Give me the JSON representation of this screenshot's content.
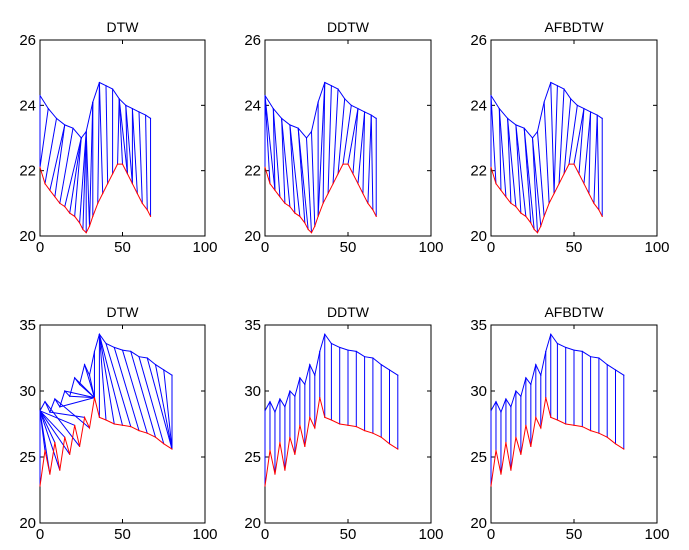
{
  "colors": {
    "link": "#0000ff",
    "series_a": "#0000ff",
    "series_b": "#ff0000",
    "axes": "#000000",
    "background": "#ffffff"
  },
  "chart_data": [
    {
      "type": "line",
      "title": "DTW",
      "xlim": [
        0,
        100
      ],
      "ylim": [
        20,
        26
      ],
      "xticks": [
        "0",
        "50",
        "100"
      ],
      "yticks": [
        "20",
        "22",
        "24",
        "26"
      ],
      "grid": false,
      "series": [
        {
          "x": [
            0,
            5,
            10,
            15,
            20,
            25,
            28,
            32,
            36,
            40,
            44,
            48,
            52,
            56,
            60,
            64,
            67
          ],
          "values": [
            24.3,
            23.9,
            23.6,
            23.4,
            23.3,
            23.0,
            23.2,
            24.1,
            24.7,
            24.6,
            24.5,
            24.2,
            24.0,
            23.9,
            23.8,
            23.7,
            23.6
          ]
        },
        {
          "x": [
            0,
            3,
            6,
            9,
            12,
            15,
            18,
            21,
            24,
            26,
            28,
            30,
            32,
            35,
            38,
            41,
            44,
            47,
            50,
            53,
            56,
            59,
            62,
            65,
            67
          ],
          "values": [
            22.1,
            21.6,
            21.4,
            21.2,
            21.0,
            20.9,
            20.7,
            20.6,
            20.4,
            20.2,
            20.1,
            20.3,
            20.6,
            21.0,
            21.3,
            21.6,
            21.9,
            22.2,
            22.2,
            21.9,
            21.6,
            21.3,
            21.0,
            20.8,
            20.6
          ]
        }
      ],
      "alignment_links": [
        [
          0,
          0
        ],
        [
          1,
          0
        ],
        [
          2,
          1
        ],
        [
          3,
          2
        ],
        [
          3,
          3
        ],
        [
          4,
          4
        ],
        [
          5,
          5
        ],
        [
          5,
          6
        ],
        [
          5,
          7
        ],
        [
          6,
          8
        ],
        [
          6,
          9
        ],
        [
          6,
          10
        ],
        [
          6,
          11
        ],
        [
          7,
          11
        ],
        [
          7,
          12
        ],
        [
          8,
          13
        ],
        [
          8,
          14
        ],
        [
          9,
          15
        ],
        [
          10,
          16
        ],
        [
          11,
          17
        ],
        [
          11,
          18
        ],
        [
          11,
          19
        ],
        [
          12,
          19
        ],
        [
          12,
          20
        ],
        [
          13,
          20
        ],
        [
          13,
          21
        ],
        [
          14,
          22
        ],
        [
          15,
          23
        ],
        [
          16,
          24
        ]
      ]
    },
    {
      "type": "line",
      "title": "DDTW",
      "xlim": [
        0,
        100
      ],
      "ylim": [
        20,
        26
      ],
      "xticks": [
        "0",
        "50",
        "100"
      ],
      "yticks": [
        "20",
        "22",
        "24",
        "26"
      ],
      "grid": false,
      "series": [
        {
          "x": [
            0,
            5,
            10,
            15,
            20,
            25,
            28,
            32,
            36,
            40,
            44,
            48,
            52,
            56,
            60,
            64,
            67
          ],
          "values": [
            24.3,
            23.9,
            23.6,
            23.4,
            23.3,
            23.0,
            23.2,
            24.1,
            24.7,
            24.6,
            24.5,
            24.2,
            24.0,
            23.9,
            23.8,
            23.7,
            23.6
          ]
        },
        {
          "x": [
            0,
            3,
            6,
            9,
            12,
            15,
            18,
            21,
            24,
            26,
            28,
            30,
            32,
            35,
            38,
            41,
            44,
            47,
            50,
            53,
            56,
            59,
            62,
            65,
            67
          ],
          "values": [
            22.1,
            21.6,
            21.4,
            21.2,
            21.0,
            20.9,
            20.7,
            20.6,
            20.4,
            20.2,
            20.1,
            20.3,
            20.6,
            21.0,
            21.3,
            21.6,
            21.9,
            22.2,
            22.2,
            21.9,
            21.6,
            21.3,
            21.0,
            20.8,
            20.6
          ]
        }
      ],
      "alignment_links": [
        [
          0,
          0
        ],
        [
          0,
          1
        ],
        [
          0,
          2
        ],
        [
          1,
          2
        ],
        [
          1,
          3
        ],
        [
          2,
          4
        ],
        [
          2,
          5
        ],
        [
          3,
          6
        ],
        [
          3,
          7
        ],
        [
          4,
          8
        ],
        [
          4,
          9
        ],
        [
          5,
          10
        ],
        [
          6,
          11
        ],
        [
          7,
          12
        ],
        [
          8,
          12
        ],
        [
          8,
          13
        ],
        [
          9,
          14
        ],
        [
          10,
          15
        ],
        [
          11,
          16
        ],
        [
          12,
          17
        ],
        [
          13,
          18
        ],
        [
          13,
          19
        ],
        [
          14,
          20
        ],
        [
          14,
          21
        ],
        [
          15,
          22
        ],
        [
          15,
          23
        ],
        [
          16,
          24
        ]
      ]
    },
    {
      "type": "line",
      "title": "AFBDTW",
      "xlim": [
        0,
        100
      ],
      "ylim": [
        20,
        26
      ],
      "xticks": [
        "0",
        "50",
        "100"
      ],
      "yticks": [
        "20",
        "22",
        "24",
        "26"
      ],
      "grid": false,
      "series": [
        {
          "x": [
            0,
            5,
            10,
            15,
            20,
            25,
            28,
            32,
            36,
            40,
            44,
            48,
            52,
            56,
            60,
            64,
            67
          ],
          "values": [
            24.3,
            23.9,
            23.6,
            23.4,
            23.3,
            23.0,
            23.2,
            24.1,
            24.7,
            24.6,
            24.5,
            24.2,
            24.0,
            23.9,
            23.8,
            23.7,
            23.6
          ]
        },
        {
          "x": [
            0,
            3,
            6,
            9,
            12,
            15,
            18,
            21,
            24,
            26,
            28,
            30,
            32,
            35,
            38,
            41,
            44,
            47,
            50,
            53,
            56,
            59,
            62,
            65,
            67
          ],
          "values": [
            22.1,
            21.6,
            21.4,
            21.2,
            21.0,
            20.9,
            20.7,
            20.6,
            20.4,
            20.2,
            20.1,
            20.3,
            20.6,
            21.0,
            21.3,
            21.6,
            21.9,
            22.2,
            22.2,
            21.9,
            21.6,
            21.3,
            21.0,
            20.8,
            20.6
          ]
        }
      ],
      "alignment_links": [
        [
          0,
          0
        ],
        [
          0,
          1
        ],
        [
          1,
          2
        ],
        [
          1,
          3
        ],
        [
          2,
          4
        ],
        [
          2,
          5
        ],
        [
          3,
          6
        ],
        [
          3,
          7
        ],
        [
          4,
          8
        ],
        [
          4,
          9
        ],
        [
          5,
          10
        ],
        [
          5,
          11
        ],
        [
          6,
          12
        ],
        [
          7,
          13
        ],
        [
          8,
          14
        ],
        [
          9,
          14
        ],
        [
          10,
          15
        ],
        [
          11,
          16
        ],
        [
          12,
          17
        ],
        [
          13,
          18
        ],
        [
          13,
          19
        ],
        [
          14,
          20
        ],
        [
          14,
          21
        ],
        [
          15,
          22
        ],
        [
          15,
          23
        ],
        [
          16,
          24
        ]
      ]
    },
    {
      "type": "line",
      "title": "DTW",
      "xlim": [
        0,
        100
      ],
      "ylim": [
        20,
        35
      ],
      "xticks": [
        "0",
        "50",
        "100"
      ],
      "yticks": [
        "20",
        "25",
        "30",
        "35"
      ],
      "grid": false,
      "series": [
        {
          "x": [
            0,
            3,
            6,
            9,
            12,
            15,
            18,
            21,
            24,
            27,
            30,
            33,
            36,
            40,
            45,
            50,
            55,
            60,
            65,
            70,
            75,
            80
          ],
          "values": [
            28.5,
            29.2,
            28.4,
            29.4,
            28.8,
            30.0,
            29.6,
            31.0,
            30.5,
            32.0,
            31.2,
            33.0,
            34.3,
            33.6,
            33.3,
            33.1,
            33.0,
            32.6,
            32.5,
            32.0,
            31.6,
            31.2
          ]
        },
        {
          "x": [
            0,
            3,
            6,
            9,
            12,
            15,
            18,
            21,
            24,
            27,
            30,
            33,
            36,
            40,
            45,
            50,
            55,
            60,
            65,
            70,
            75,
            80
          ],
          "values": [
            22.8,
            25.5,
            23.7,
            26.1,
            24.0,
            26.5,
            25.2,
            27.4,
            25.8,
            28.0,
            27.2,
            29.5,
            28.0,
            27.8,
            27.5,
            27.4,
            27.3,
            27.0,
            26.8,
            26.5,
            26.0,
            25.6
          ]
        }
      ],
      "alignment_links": [
        [
          0,
          0
        ],
        [
          0,
          1
        ],
        [
          0,
          2
        ],
        [
          0,
          3
        ],
        [
          0,
          4
        ],
        [
          0,
          5
        ],
        [
          0,
          6
        ],
        [
          0,
          7
        ],
        [
          1,
          8
        ],
        [
          2,
          9
        ],
        [
          3,
          10
        ],
        [
          4,
          11
        ],
        [
          5,
          11
        ],
        [
          6,
          11
        ],
        [
          7,
          11
        ],
        [
          8,
          11
        ],
        [
          9,
          11
        ],
        [
          10,
          11
        ],
        [
          11,
          11
        ],
        [
          12,
          12
        ],
        [
          12,
          13
        ],
        [
          12,
          14
        ],
        [
          12,
          15
        ],
        [
          13,
          16
        ],
        [
          14,
          17
        ],
        [
          15,
          18
        ],
        [
          16,
          19
        ],
        [
          17,
          20
        ],
        [
          18,
          21
        ],
        [
          19,
          21
        ],
        [
          20,
          21
        ],
        [
          21,
          21
        ]
      ]
    },
    {
      "type": "line",
      "title": "DDTW",
      "xlim": [
        0,
        100
      ],
      "ylim": [
        20,
        35
      ],
      "xticks": [
        "0",
        "50",
        "100"
      ],
      "yticks": [
        "20",
        "25",
        "30",
        "35"
      ],
      "grid": false,
      "series": [
        {
          "x": [
            0,
            3,
            6,
            9,
            12,
            15,
            18,
            21,
            24,
            27,
            30,
            33,
            36,
            40,
            45,
            50,
            55,
            60,
            65,
            70,
            75,
            80
          ],
          "values": [
            28.5,
            29.2,
            28.4,
            29.4,
            28.8,
            30.0,
            29.6,
            31.0,
            30.5,
            32.0,
            31.2,
            33.0,
            34.3,
            33.6,
            33.3,
            33.1,
            33.0,
            32.6,
            32.5,
            32.0,
            31.6,
            31.2
          ]
        },
        {
          "x": [
            0,
            3,
            6,
            9,
            12,
            15,
            18,
            21,
            24,
            27,
            30,
            33,
            36,
            40,
            45,
            50,
            55,
            60,
            65,
            70,
            75,
            80
          ],
          "values": [
            22.8,
            25.5,
            23.7,
            26.1,
            24.0,
            26.5,
            25.2,
            27.4,
            25.8,
            28.0,
            27.2,
            29.5,
            28.0,
            27.8,
            27.5,
            27.4,
            27.3,
            27.0,
            26.8,
            26.5,
            26.0,
            25.6
          ]
        }
      ],
      "alignment_links": [
        [
          0,
          0
        ],
        [
          1,
          1
        ],
        [
          2,
          2
        ],
        [
          3,
          3
        ],
        [
          4,
          4
        ],
        [
          5,
          5
        ],
        [
          6,
          6
        ],
        [
          7,
          7
        ],
        [
          8,
          8
        ],
        [
          9,
          9
        ],
        [
          10,
          10
        ],
        [
          11,
          11
        ],
        [
          12,
          12
        ],
        [
          13,
          13
        ],
        [
          14,
          14
        ],
        [
          15,
          15
        ],
        [
          16,
          16
        ],
        [
          17,
          17
        ],
        [
          18,
          18
        ],
        [
          19,
          19
        ],
        [
          20,
          20
        ],
        [
          21,
          21
        ]
      ]
    },
    {
      "type": "line",
      "title": "AFBDTW",
      "xlim": [
        0,
        100
      ],
      "ylim": [
        20,
        35
      ],
      "xticks": [
        "0",
        "50",
        "100"
      ],
      "yticks": [
        "20",
        "25",
        "30",
        "35"
      ],
      "grid": false,
      "series": [
        {
          "x": [
            0,
            3,
            6,
            9,
            12,
            15,
            18,
            21,
            24,
            27,
            30,
            33,
            36,
            40,
            45,
            50,
            55,
            60,
            65,
            70,
            75,
            80
          ],
          "values": [
            28.5,
            29.2,
            28.4,
            29.4,
            28.8,
            30.0,
            29.6,
            31.0,
            30.5,
            32.0,
            31.2,
            33.0,
            34.3,
            33.6,
            33.3,
            33.1,
            33.0,
            32.6,
            32.5,
            32.0,
            31.6,
            31.2
          ]
        },
        {
          "x": [
            0,
            3,
            6,
            9,
            12,
            15,
            18,
            21,
            24,
            27,
            30,
            33,
            36,
            40,
            45,
            50,
            55,
            60,
            65,
            70,
            75,
            80
          ],
          "values": [
            22.8,
            25.5,
            23.7,
            26.1,
            24.0,
            26.5,
            25.2,
            27.4,
            25.8,
            28.0,
            27.2,
            29.5,
            28.0,
            27.8,
            27.5,
            27.4,
            27.3,
            27.0,
            26.8,
            26.5,
            26.0,
            25.6
          ]
        }
      ],
      "alignment_links": [
        [
          0,
          0
        ],
        [
          1,
          1
        ],
        [
          2,
          2
        ],
        [
          3,
          3
        ],
        [
          4,
          4
        ],
        [
          5,
          5
        ],
        [
          6,
          6
        ],
        [
          7,
          7
        ],
        [
          8,
          8
        ],
        [
          9,
          9
        ],
        [
          10,
          10
        ],
        [
          11,
          11
        ],
        [
          12,
          12
        ],
        [
          13,
          13
        ],
        [
          14,
          14
        ],
        [
          15,
          15
        ],
        [
          16,
          16
        ],
        [
          17,
          17
        ],
        [
          18,
          18
        ],
        [
          19,
          19
        ],
        [
          20,
          20
        ],
        [
          21,
          21
        ]
      ]
    }
  ]
}
